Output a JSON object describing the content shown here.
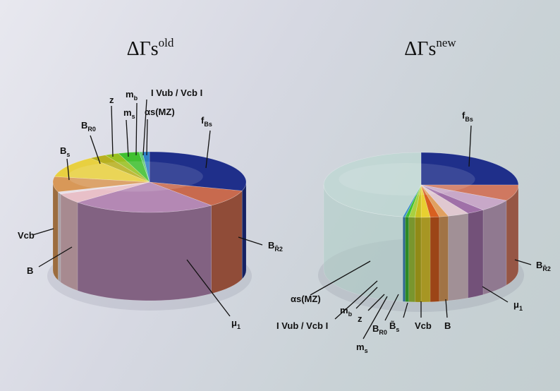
{
  "chart_data": [
    {
      "type": "pie",
      "title": "ΔΓsold",
      "title_base": "ΔΓs",
      "title_sup": "old",
      "slices": [
        {
          "label": "fBs",
          "base": "f",
          "sub": "Bs",
          "value": 25.5,
          "color": "#1f2f8a"
        },
        {
          "label": "BR̃2",
          "base": "B",
          "sub": "R̃2",
          "value": 8.0,
          "color": "#c86a4e"
        },
        {
          "label": "μ1",
          "base": "μ",
          "sub": "1",
          "value": 21.0,
          "color": "#b488b4"
        },
        {
          "label": "B",
          "base": "B",
          "sub": "",
          "value": 4.5,
          "color": "#e8c0c8"
        },
        {
          "label": "Vcb",
          "base": "Vcb",
          "sub": "",
          "value": 1.0,
          "color": "#e8e0e8"
        },
        {
          "label": "Bs",
          "base": "B",
          "sub": "s",
          "value": 7.0,
          "color": "#d89858"
        },
        {
          "label": "BR0",
          "base": "B",
          "sub": "R0",
          "value": 10.0,
          "color": "#e8d040"
        },
        {
          "label": "z",
          "base": "z",
          "sub": "",
          "value": 2.5,
          "color": "#b8b020"
        },
        {
          "label": "ms",
          "base": "m",
          "sub": "s",
          "value": 2.0,
          "color": "#98c020"
        },
        {
          "label": "mb",
          "base": "m",
          "sub": "b",
          "value": 3.0,
          "color": "#40c030"
        },
        {
          "label": "I Vub / Vcb I",
          "base": "I Vub / Vcb I",
          "sub": "",
          "value": 0.5,
          "color": "#60c878"
        },
        {
          "label": "αs(MZ)",
          "base": "αs(MZ)",
          "sub": "",
          "value": 1.0,
          "color": "#3080c8"
        }
      ]
    },
    {
      "type": "pie",
      "title": "ΔΓsnew",
      "title_base": "ΔΓs",
      "title_sup": "new",
      "slices": [
        {
          "label": "fBs",
          "base": "f",
          "sub": "Bs",
          "value": 25.0,
          "color": "#1f2f8a"
        },
        {
          "label": "BR̃2",
          "base": "B",
          "sub": "R̃2",
          "value": 8.0,
          "color": "#d07860"
        },
        {
          "label": "μ1",
          "base": "μ",
          "sub": "1",
          "value": 6.0,
          "color": "#c8a8c8"
        },
        {
          "label": "B",
          "base": "B",
          "sub": "",
          "value": 3.0,
          "color": "#a070a8"
        },
        {
          "label": "Vcb",
          "base": "Vcb",
          "sub": "",
          "value": 3.5,
          "color": "#e0c8d0"
        },
        {
          "label": "B̃s",
          "base": "B̃",
          "sub": "s",
          "value": 1.5,
          "color": "#e0a060"
        },
        {
          "label": "BR0",
          "base": "B",
          "sub": "R0",
          "value": 1.5,
          "color": "#d86020"
        },
        {
          "label": "z",
          "base": "z",
          "sub": "",
          "value": 1.5,
          "color": "#e8d030"
        },
        {
          "label": "ms",
          "base": "m",
          "sub": "s",
          "value": 1.0,
          "color": "#c8c020"
        },
        {
          "label": "mb",
          "base": "m",
          "sub": "b",
          "value": 1.0,
          "color": "#a8d040"
        },
        {
          "label": "I Vub / Vcb I",
          "base": "I Vub / Vcb I",
          "sub": "",
          "value": 0.6,
          "color": "#40c030"
        },
        {
          "label": "αs(MZ)",
          "base": "αs(MZ)",
          "sub": "",
          "value": 0.4,
          "color": "#4090c8"
        },
        {
          "label": "",
          "base": "",
          "sub": "",
          "value": 47.0,
          "color": "#b8d8d0",
          "transparent": true
        }
      ]
    }
  ]
}
